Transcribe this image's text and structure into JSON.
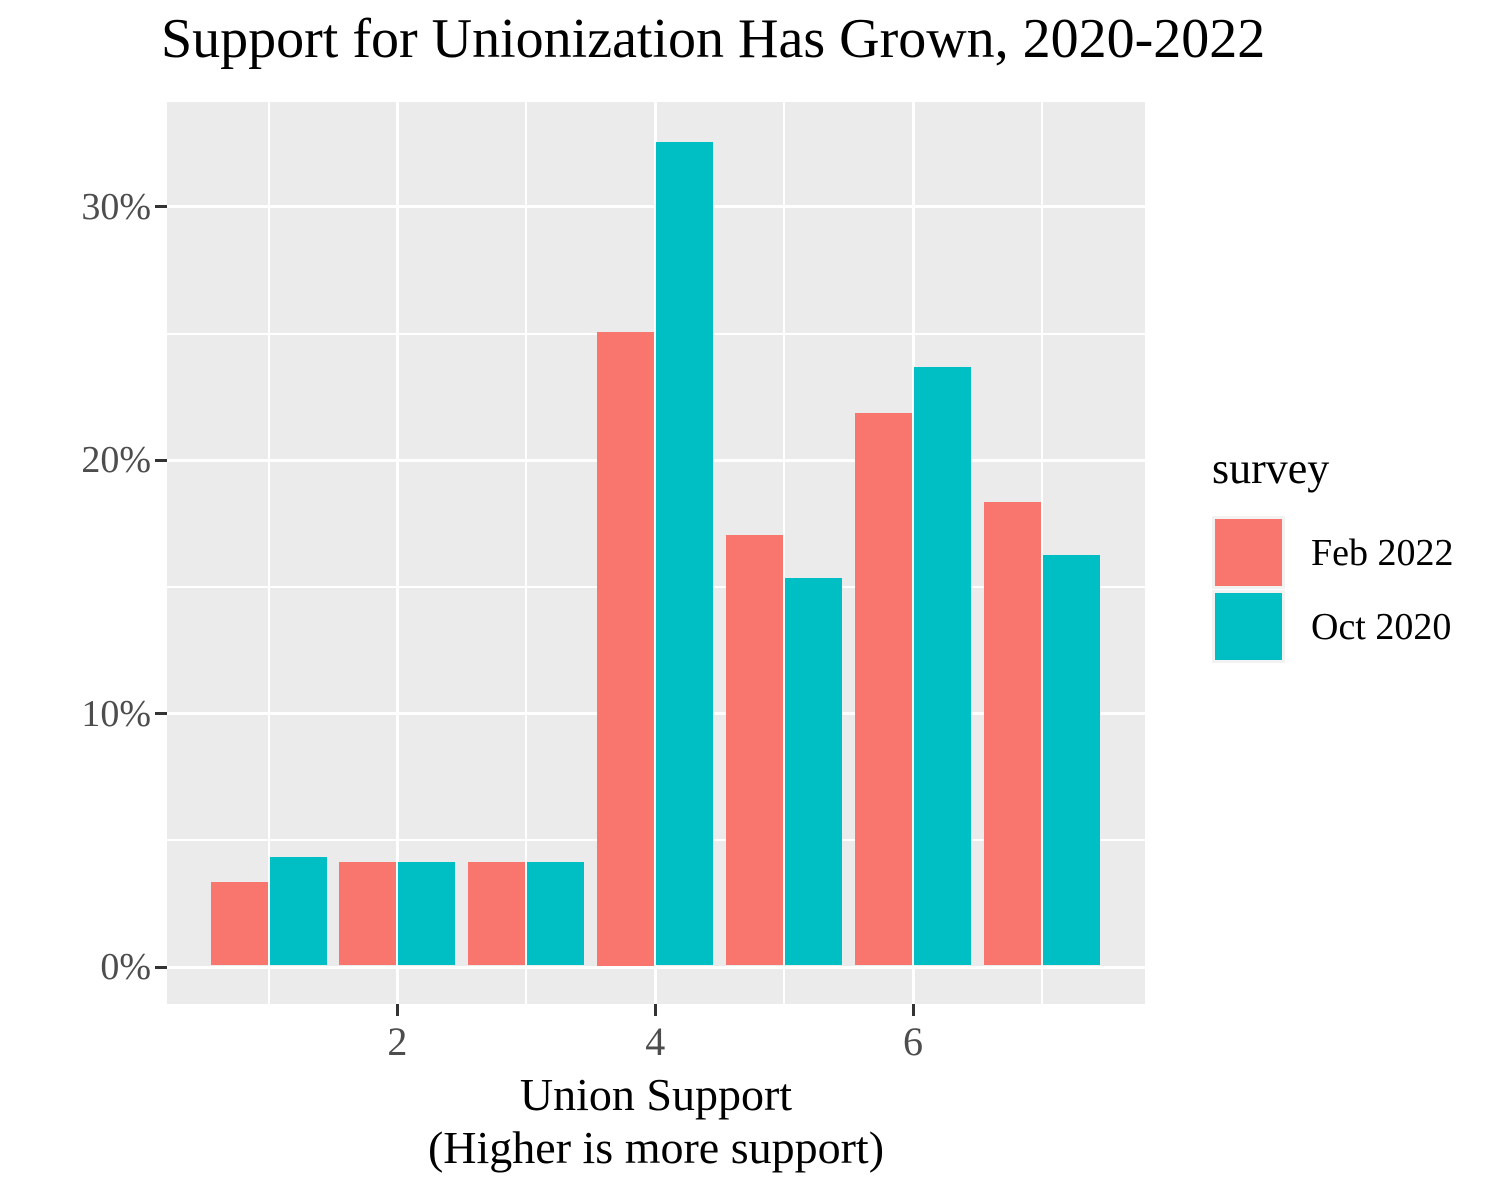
{
  "chart_data": {
    "type": "bar",
    "bar_mode": "dodged",
    "title": "Support for Unionization Has Grown, 2020-2022",
    "xlabel": "Union Support (Higher is more support)",
    "xlabel_line1": "Union Support",
    "xlabel_line2": "(Higher is more support)",
    "ylabel": "",
    "categories": [
      1,
      2,
      3,
      4,
      5,
      6,
      7
    ],
    "series": [
      {
        "name": "Feb 2022",
        "color": "#F8766D",
        "values": [
          3.3,
          4.1,
          4.1,
          25.0,
          17.0,
          21.8,
          18.3
        ]
      },
      {
        "name": "Oct 2020",
        "color": "#00BFC4",
        "values": [
          4.3,
          4.1,
          4.1,
          32.5,
          15.3,
          23.6,
          16.2
        ]
      }
    ],
    "units": "percent",
    "x_ticks": [
      2,
      4,
      6
    ],
    "x_minor_ticks": [
      1,
      3,
      5,
      7
    ],
    "y_ticks": [
      {
        "value": 0,
        "label": "0%"
      },
      {
        "value": 10,
        "label": "10%"
      },
      {
        "value": 20,
        "label": "20%"
      },
      {
        "value": 30,
        "label": "30%"
      }
    ],
    "y_minor_ticks": [
      5,
      15,
      25
    ],
    "ylim": [
      -1.6,
      34.1
    ],
    "xlim": [
      0.2,
      7.8
    ],
    "grid": "on",
    "legend": {
      "title": "survey",
      "position": "right"
    },
    "colors": {
      "panel_bg": "#EBEBEB",
      "grid": "#FFFFFF",
      "axis_text": "#4D4D4D",
      "tick_mark": "#333333",
      "title_text": "#000000"
    }
  }
}
